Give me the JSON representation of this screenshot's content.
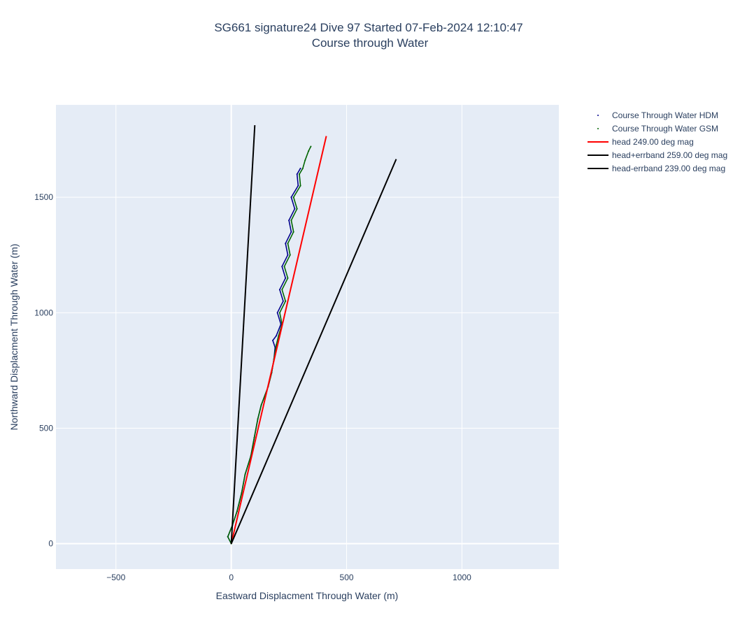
{
  "chart_data": {
    "type": "line",
    "title": "SG661 signature24 Dive 97 Started 07-Feb-2024 12:10:47",
    "subtitle": "Course through Water",
    "xlabel": "Eastward Displacment Through Water (m)",
    "ylabel": "Northward Displacment Through Water (m)",
    "xlim": [
      -760,
      1420
    ],
    "ylim": [
      -110,
      1900
    ],
    "xticks": [
      -500,
      0,
      500,
      1000
    ],
    "xtick_labels": [
      "−500",
      "0",
      "500",
      "1000"
    ],
    "yticks": [
      0,
      500,
      1000,
      1500
    ],
    "ytick_labels": [
      "0",
      "500",
      "1000",
      "1500"
    ],
    "grid": true,
    "legend_position": "right",
    "colors": {
      "plot_bg": "#e5ecf6",
      "grid": "#ffffff",
      "hdm": "#00008b",
      "gsm": "#006400",
      "head": "#ff0000",
      "errband": "#000000"
    },
    "series": [
      {
        "name": "Course Through Water HDM",
        "mode": "markers",
        "color": "#00008b",
        "points": [
          [
            0,
            0
          ],
          [
            -15,
            30
          ],
          [
            5,
            80
          ],
          [
            25,
            140
          ],
          [
            45,
            220
          ],
          [
            60,
            300
          ],
          [
            85,
            380
          ],
          [
            100,
            460
          ],
          [
            115,
            540
          ],
          [
            130,
            600
          ],
          [
            160,
            680
          ],
          [
            175,
            740
          ],
          [
            185,
            800
          ],
          [
            190,
            850
          ],
          [
            180,
            880
          ],
          [
            195,
            900
          ],
          [
            215,
            950
          ],
          [
            200,
            1000
          ],
          [
            225,
            1050
          ],
          [
            210,
            1100
          ],
          [
            235,
            1150
          ],
          [
            220,
            1200
          ],
          [
            245,
            1250
          ],
          [
            235,
            1300
          ],
          [
            260,
            1350
          ],
          [
            250,
            1400
          ],
          [
            275,
            1450
          ],
          [
            260,
            1500
          ],
          [
            290,
            1550
          ],
          [
            285,
            1600
          ],
          [
            300,
            1625
          ]
        ]
      },
      {
        "name": "Course Through Water GSM",
        "mode": "markers",
        "color": "#006400",
        "points": [
          [
            0,
            0
          ],
          [
            -15,
            30
          ],
          [
            5,
            80
          ],
          [
            25,
            140
          ],
          [
            45,
            220
          ],
          [
            60,
            300
          ],
          [
            85,
            380
          ],
          [
            100,
            460
          ],
          [
            115,
            540
          ],
          [
            130,
            600
          ],
          [
            160,
            680
          ],
          [
            175,
            740
          ],
          [
            185,
            800
          ],
          [
            195,
            860
          ],
          [
            205,
            900
          ],
          [
            220,
            950
          ],
          [
            210,
            1000
          ],
          [
            235,
            1050
          ],
          [
            220,
            1100
          ],
          [
            245,
            1150
          ],
          [
            230,
            1200
          ],
          [
            255,
            1250
          ],
          [
            245,
            1300
          ],
          [
            270,
            1350
          ],
          [
            260,
            1400
          ],
          [
            285,
            1450
          ],
          [
            270,
            1500
          ],
          [
            300,
            1550
          ],
          [
            295,
            1600
          ],
          [
            310,
            1625
          ],
          [
            320,
            1660
          ],
          [
            335,
            1700
          ],
          [
            345,
            1720
          ]
        ]
      },
      {
        "name": "head 249.00 deg mag",
        "mode": "lines",
        "color": "#ff0000",
        "x": [
          0,
          412
        ],
        "y": [
          0,
          1765
        ]
      },
      {
        "name": "head+errband 259.00 deg mag",
        "mode": "lines",
        "color": "#000000",
        "x": [
          0,
          102
        ],
        "y": [
          0,
          1812
        ]
      },
      {
        "name": "head-errband 239.00 deg mag",
        "mode": "lines",
        "color": "#000000",
        "x": [
          0,
          715
        ],
        "y": [
          0,
          1665
        ]
      }
    ]
  }
}
